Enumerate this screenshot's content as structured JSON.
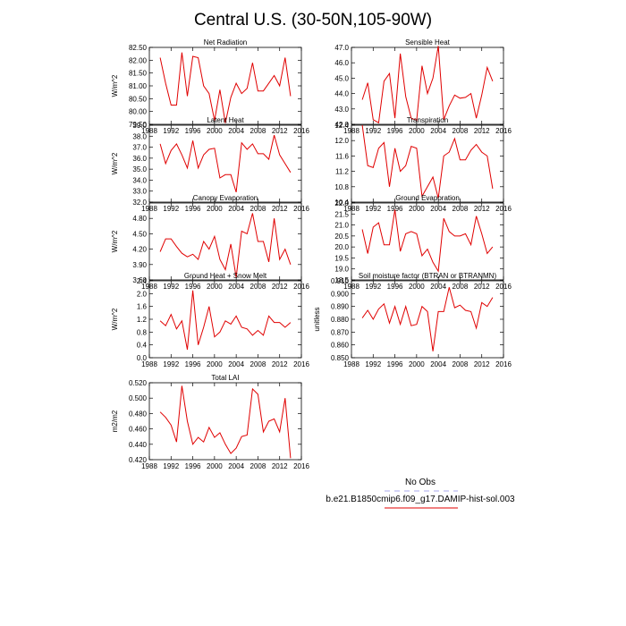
{
  "figure": {
    "title": "Central U.S. (30-50N,105-90W)",
    "line_color": "#e00000",
    "obs_color": "#aaaaee"
  },
  "legend": {
    "obs_label": "No Obs",
    "model_label": "b.e21.B1850cmip6.f09_g17.DAMIP-hist-sol.003"
  },
  "chart_data": [
    {
      "type": "line",
      "title": "Net Radiation",
      "xlabel": "",
      "ylabel": "W/m^2",
      "xlim": [
        1988,
        2016
      ],
      "ylim": [
        79.5,
        82.5
      ],
      "xticks": [
        1988,
        1992,
        1996,
        2000,
        2004,
        2008,
        2012,
        2016
      ],
      "xtick_labels": [
        "1988",
        "1992",
        "1996",
        "2000",
        "2004",
        "2008",
        "2012",
        "2016"
      ],
      "yticks": [
        79.5,
        80.0,
        80.5,
        81.0,
        81.5,
        82.0,
        82.5
      ],
      "ytick_labels": [
        "79.50",
        "80.00",
        "80.50",
        "81.00",
        "81.50",
        "82.00",
        "82.50"
      ],
      "x": [
        1990,
        1991,
        1992,
        1993,
        1994,
        1995,
        1996,
        1997,
        1998,
        1999,
        2000,
        2001,
        2002,
        2003,
        2004,
        2005,
        2006,
        2007,
        2008,
        2009,
        2010,
        2011,
        2012,
        2013,
        2014
      ],
      "y": [
        82.1,
        81.1,
        80.25,
        80.25,
        82.3,
        80.6,
        82.15,
        82.1,
        81.0,
        80.7,
        79.65,
        80.85,
        79.55,
        80.55,
        81.1,
        80.7,
        80.9,
        81.9,
        80.8,
        80.8,
        81.1,
        81.4,
        81.0,
        82.1,
        80.6
      ]
    },
    {
      "type": "line",
      "title": "Sensible Heat",
      "xlabel": "",
      "ylabel": "",
      "xlim": [
        1988,
        2016
      ],
      "ylim": [
        42.0,
        47.0
      ],
      "xticks": [
        1988,
        1992,
        1996,
        2000,
        2004,
        2008,
        2012,
        2016
      ],
      "xtick_labels": [
        "1988",
        "1992",
        "1996",
        "2000",
        "2004",
        "2008",
        "2012",
        "2016"
      ],
      "yticks": [
        42.0,
        43.0,
        44.0,
        45.0,
        46.0,
        47.0
      ],
      "ytick_labels": [
        "42.0",
        "43.0",
        "44.0",
        "45.0",
        "46.0",
        "47.0"
      ],
      "x": [
        1990,
        1991,
        1992,
        1993,
        1994,
        1995,
        1996,
        1997,
        1998,
        1999,
        2000,
        2001,
        2002,
        2003,
        2004,
        2005,
        2006,
        2007,
        2008,
        2009,
        2010,
        2011,
        2012,
        2013,
        2014
      ],
      "y": [
        43.6,
        44.7,
        42.3,
        42.1,
        44.8,
        45.3,
        42.4,
        46.6,
        43.8,
        42.4,
        42.25,
        45.8,
        44.0,
        45.0,
        47.1,
        42.3,
        43.2,
        43.9,
        43.7,
        43.75,
        44.0,
        42.4,
        43.9,
        45.7,
        44.8
      ]
    },
    {
      "type": "line",
      "title": "Latent Heat",
      "xlabel": "",
      "ylabel": "W/m^2",
      "xlim": [
        1988,
        2016
      ],
      "ylim": [
        32.0,
        39.0
      ],
      "xticks": [
        1988,
        1992,
        1996,
        2000,
        2004,
        2008,
        2012,
        2016
      ],
      "xtick_labels": [
        "1988",
        "1992",
        "1996",
        "2000",
        "2004",
        "2008",
        "2012",
        "2016"
      ],
      "yticks": [
        32.0,
        33.0,
        34.0,
        35.0,
        36.0,
        37.0,
        38.0,
        39.0
      ],
      "ytick_labels": [
        "32.0",
        "33.0",
        "34.0",
        "35.0",
        "36.0",
        "37.0",
        "38.0",
        "39.0"
      ],
      "x": [
        1990,
        1991,
        1992,
        1993,
        1994,
        1995,
        1996,
        1997,
        1998,
        1999,
        2000,
        2001,
        2002,
        2003,
        2004,
        2005,
        2006,
        2007,
        2008,
        2009,
        2010,
        2011,
        2012,
        2013,
        2014
      ],
      "y": [
        37.3,
        35.5,
        36.7,
        37.3,
        36.3,
        35.1,
        37.6,
        35.1,
        36.3,
        36.8,
        36.9,
        34.2,
        34.5,
        34.5,
        32.9,
        37.4,
        36.8,
        37.3,
        36.4,
        36.4,
        35.9,
        38.1,
        36.3,
        35.5,
        34.7
      ]
    },
    {
      "type": "line",
      "title": "Transpiration",
      "xlabel": "",
      "ylabel": "",
      "xlim": [
        1988,
        2016
      ],
      "ylim": [
        10.4,
        12.4
      ],
      "xticks": [
        1988,
        1992,
        1996,
        2000,
        2004,
        2008,
        2012,
        2016
      ],
      "xtick_labels": [
        "1988",
        "1992",
        "1996",
        "2000",
        "2004",
        "2008",
        "2012",
        "2016"
      ],
      "yticks": [
        10.4,
        10.8,
        11.2,
        11.6,
        12.0,
        12.4
      ],
      "ytick_labels": [
        "10.4",
        "10.8",
        "11.2",
        "11.6",
        "12.0",
        "12.4"
      ],
      "x": [
        1990,
        1991,
        1992,
        1993,
        1994,
        1995,
        1996,
        1997,
        1998,
        1999,
        2000,
        2001,
        2002,
        2003,
        2004,
        2005,
        2006,
        2007,
        2008,
        2009,
        2010,
        2011,
        2012,
        2013,
        2014
      ],
      "y": [
        12.4,
        11.35,
        11.3,
        11.8,
        11.95,
        10.8,
        11.8,
        11.2,
        11.35,
        11.85,
        11.8,
        10.55,
        10.8,
        11.05,
        10.5,
        11.6,
        11.7,
        12.05,
        11.5,
        11.5,
        11.75,
        11.9,
        11.7,
        11.6,
        10.75
      ]
    },
    {
      "type": "line",
      "title": "Canopy Evaporation",
      "xlabel": "",
      "ylabel": "W/m^2",
      "xlim": [
        1988,
        2016
      ],
      "ylim": [
        3.6,
        5.1
      ],
      "xticks": [
        1988,
        1992,
        1996,
        2000,
        2004,
        2008,
        2012,
        2016
      ],
      "xtick_labels": [
        "1988",
        "1992",
        "1996",
        "2000",
        "2004",
        "2008",
        "2012",
        "2016"
      ],
      "yticks": [
        3.6,
        3.9,
        4.2,
        4.5,
        4.8
      ],
      "ytick_labels": [
        "3.60",
        "3.90",
        "4.20",
        "4.50",
        "4.80"
      ],
      "x": [
        1990,
        1991,
        1992,
        1993,
        1994,
        1995,
        1996,
        1997,
        1998,
        1999,
        2000,
        2001,
        2002,
        2003,
        2004,
        2005,
        2006,
        2007,
        2008,
        2009,
        2010,
        2011,
        2012,
        2013,
        2014
      ],
      "y": [
        4.15,
        4.4,
        4.4,
        4.25,
        4.12,
        4.05,
        4.1,
        4.0,
        4.35,
        4.2,
        4.45,
        4.0,
        3.8,
        4.3,
        3.65,
        4.55,
        4.5,
        4.9,
        4.35,
        4.35,
        3.95,
        4.8,
        4.0,
        4.2,
        3.9
      ]
    },
    {
      "type": "line",
      "title": "Ground Evaporation",
      "xlabel": "",
      "ylabel": "",
      "xlim": [
        1988,
        2016
      ],
      "ylim": [
        18.5,
        22.0
      ],
      "xticks": [
        1988,
        1992,
        1996,
        2000,
        2004,
        2008,
        2012,
        2016
      ],
      "xtick_labels": [
        "1988",
        "1992",
        "1996",
        "2000",
        "2004",
        "2008",
        "2012",
        "2016"
      ],
      "yticks": [
        18.5,
        19.0,
        19.5,
        20.0,
        20.5,
        21.0,
        21.5,
        22.0
      ],
      "ytick_labels": [
        "18.5",
        "19.0",
        "19.5",
        "20.0",
        "20.5",
        "21.0",
        "21.5",
        "22.0"
      ],
      "x": [
        1990,
        1991,
        1992,
        1993,
        1994,
        1995,
        1996,
        1997,
        1998,
        1999,
        2000,
        2001,
        2002,
        2003,
        2004,
        2005,
        2006,
        2007,
        2008,
        2009,
        2010,
        2011,
        2012,
        2013,
        2014
      ],
      "y": [
        20.8,
        19.7,
        20.9,
        21.1,
        20.1,
        20.1,
        21.7,
        19.8,
        20.6,
        20.7,
        20.6,
        19.6,
        19.9,
        19.3,
        18.9,
        21.3,
        20.7,
        20.5,
        20.5,
        20.6,
        20.1,
        21.4,
        20.6,
        19.7,
        20.0
      ]
    },
    {
      "type": "line",
      "title": "Ground Heat + Snow Melt",
      "xlabel": "",
      "ylabel": "W/m^2",
      "xlim": [
        1988,
        2016
      ],
      "ylim": [
        0.0,
        2.4
      ],
      "xticks": [
        1988,
        1992,
        1996,
        2000,
        2004,
        2008,
        2012,
        2016
      ],
      "xtick_labels": [
        "1988",
        "1992",
        "1996",
        "2000",
        "2004",
        "2008",
        "2012",
        "2016"
      ],
      "yticks": [
        0.0,
        0.4,
        0.8,
        1.2,
        1.6,
        2.0,
        2.4
      ],
      "ytick_labels": [
        "0.0",
        "0.4",
        "0.8",
        "1.2",
        "1.6",
        "2.0",
        "2.4"
      ],
      "x": [
        1990,
        1991,
        1992,
        1993,
        1994,
        1995,
        1996,
        1997,
        1998,
        1999,
        2000,
        2001,
        2002,
        2003,
        2004,
        2005,
        2006,
        2007,
        2008,
        2009,
        2010,
        2011,
        2012,
        2013,
        2014
      ],
      "y": [
        1.15,
        1.0,
        1.35,
        0.9,
        1.15,
        0.25,
        2.1,
        0.4,
        0.95,
        1.6,
        0.65,
        0.8,
        1.15,
        1.05,
        1.3,
        0.95,
        0.9,
        0.7,
        0.85,
        0.7,
        1.3,
        1.1,
        1.1,
        0.95,
        1.1
      ]
    },
    {
      "type": "line",
      "title": "Soil moisture factor (BTRAN or BTRANMN)",
      "xlabel": "",
      "ylabel": "unitless",
      "xlim": [
        1988,
        2016
      ],
      "ylim": [
        0.85,
        0.91
      ],
      "xticks": [
        1988,
        1992,
        1996,
        2000,
        2004,
        2008,
        2012,
        2016
      ],
      "xtick_labels": [
        "1988",
        "1992",
        "1996",
        "2000",
        "2004",
        "2008",
        "2012",
        "2016"
      ],
      "yticks": [
        0.85,
        0.86,
        0.87,
        0.88,
        0.89,
        0.9,
        0.91
      ],
      "ytick_labels": [
        "0.850",
        "0.860",
        "0.870",
        "0.880",
        "0.890",
        "0.900",
        "0.910"
      ],
      "x": [
        1990,
        1991,
        1992,
        1993,
        1994,
        1995,
        1996,
        1997,
        1998,
        1999,
        2000,
        2001,
        2002,
        2003,
        2004,
        2005,
        2006,
        2007,
        2008,
        2009,
        2010,
        2011,
        2012,
        2013,
        2014
      ],
      "y": [
        0.881,
        0.887,
        0.88,
        0.888,
        0.892,
        0.877,
        0.89,
        0.876,
        0.89,
        0.875,
        0.876,
        0.89,
        0.886,
        0.855,
        0.886,
        0.886,
        0.905,
        0.889,
        0.891,
        0.887,
        0.886,
        0.873,
        0.893,
        0.89,
        0.897
      ]
    },
    {
      "type": "line",
      "title": "Total LAI",
      "xlabel": "",
      "ylabel": "m2/m2",
      "xlim": [
        1988,
        2016
      ],
      "ylim": [
        0.42,
        0.52
      ],
      "xticks": [
        1988,
        1992,
        1996,
        2000,
        2004,
        2008,
        2012,
        2016
      ],
      "xtick_labels": [
        "1988",
        "1992",
        "1996",
        "2000",
        "2004",
        "2008",
        "2012",
        "2016"
      ],
      "yticks": [
        0.42,
        0.44,
        0.46,
        0.48,
        0.5,
        0.52
      ],
      "ytick_labels": [
        "0.420",
        "0.440",
        "0.460",
        "0.480",
        "0.500",
        "0.520"
      ],
      "x": [
        1990,
        1991,
        1992,
        1993,
        1994,
        1995,
        1996,
        1997,
        1998,
        1999,
        2000,
        2001,
        2002,
        2003,
        2004,
        2005,
        2006,
        2007,
        2008,
        2009,
        2010,
        2011,
        2012,
        2013,
        2014
      ],
      "y": [
        0.482,
        0.475,
        0.465,
        0.443,
        0.516,
        0.47,
        0.44,
        0.449,
        0.443,
        0.462,
        0.449,
        0.455,
        0.44,
        0.428,
        0.435,
        0.45,
        0.452,
        0.512,
        0.505,
        0.456,
        0.47,
        0.473,
        0.456,
        0.5,
        0.422
      ]
    }
  ]
}
